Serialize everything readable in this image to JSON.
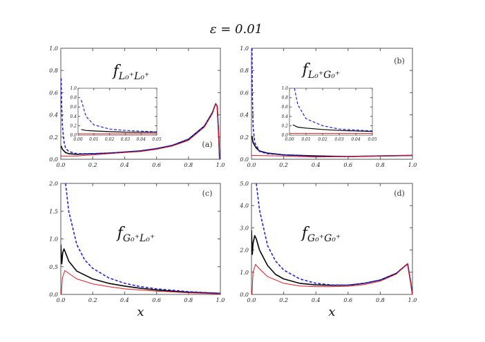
{
  "figure_title": "ε = 0.01",
  "colors": {
    "black": "#000000",
    "blue_dashed": "#1f1fe6",
    "red": "#e8141e"
  },
  "chart_data": [
    {
      "type": "line",
      "panel_label": "(a)",
      "function_label": {
        "base": "f",
        "sub": "L₀⁺L₀⁺"
      },
      "xlabel": "",
      "xlim": [
        0,
        1
      ],
      "ylim": [
        0,
        1
      ],
      "xticks": [
        "0.0",
        "0.2",
        "0.4",
        "0.6",
        "0.8",
        "1.0"
      ],
      "yticks": [
        "0.0",
        "0.2",
        "0.4",
        "0.6",
        "0.8",
        "1.0"
      ],
      "series": [
        {
          "color": "black",
          "style": "solid",
          "points": [
            [
              0.002,
              0.12
            ],
            [
              0.01,
              0.09
            ],
            [
              0.03,
              0.06
            ],
            [
              0.05,
              0.05
            ],
            [
              0.1,
              0.045
            ],
            [
              0.2,
              0.05
            ],
            [
              0.3,
              0.055
            ],
            [
              0.4,
              0.065
            ],
            [
              0.5,
              0.075
            ],
            [
              0.6,
              0.095
            ],
            [
              0.7,
              0.125
            ],
            [
              0.8,
              0.18
            ],
            [
              0.9,
              0.3
            ],
            [
              0.95,
              0.42
            ],
            [
              0.97,
              0.5
            ],
            [
              0.98,
              0.48
            ],
            [
              0.99,
              0.2
            ],
            [
              0.995,
              0
            ]
          ]
        },
        {
          "color": "blue_dashed",
          "style": "dashed",
          "points": [
            [
              0.002,
              0.73
            ],
            [
              0.005,
              0.5
            ],
            [
              0.01,
              0.3
            ],
            [
              0.02,
              0.16
            ],
            [
              0.03,
              0.1
            ],
            [
              0.05,
              0.07
            ],
            [
              0.1,
              0.05
            ],
            [
              0.2,
              0.05
            ],
            [
              0.3,
              0.056
            ],
            [
              0.4,
              0.066
            ],
            [
              0.5,
              0.077
            ],
            [
              0.6,
              0.097
            ],
            [
              0.7,
              0.127
            ],
            [
              0.8,
              0.182
            ],
            [
              0.9,
              0.3
            ],
            [
              0.95,
              0.42
            ],
            [
              0.97,
              0.5
            ],
            [
              0.98,
              0.48
            ],
            [
              0.99,
              0.2
            ],
            [
              0.995,
              0
            ]
          ]
        },
        {
          "color": "red",
          "style": "solid",
          "points": [
            [
              0.0,
              0.03
            ],
            [
              0.1,
              0.03
            ],
            [
              0.2,
              0.04
            ],
            [
              0.3,
              0.05
            ],
            [
              0.4,
              0.06
            ],
            [
              0.5,
              0.07
            ],
            [
              0.6,
              0.09
            ],
            [
              0.7,
              0.12
            ],
            [
              0.8,
              0.17
            ],
            [
              0.9,
              0.29
            ],
            [
              0.95,
              0.41
            ],
            [
              0.97,
              0.5
            ],
            [
              0.98,
              0.48
            ],
            [
              0.99,
              0.2
            ],
            [
              0.995,
              0
            ]
          ]
        }
      ],
      "inset": {
        "xlim": [
          0,
          0.05
        ],
        "ylim": [
          0,
          1
        ],
        "xticks": [
          "0.00",
          "0.01",
          "0.02",
          "0.03",
          "0.04",
          "0.05"
        ],
        "yticks": [
          "0.0",
          "0.2",
          "0.4",
          "0.6",
          "0.8",
          "1.0"
        ],
        "series": [
          {
            "color": "black",
            "style": "solid",
            "points": [
              [
                0.002,
                0.12
              ],
              [
                0.005,
                0.1
              ],
              [
                0.01,
                0.09
              ],
              [
                0.02,
                0.075
              ],
              [
                0.03,
                0.065
              ],
              [
                0.05,
                0.06
              ]
            ]
          },
          {
            "color": "blue_dashed",
            "style": "dashed",
            "points": [
              [
                0.002,
                0.75
              ],
              [
                0.005,
                0.4
              ],
              [
                0.01,
                0.22
              ],
              [
                0.02,
                0.13
              ],
              [
                0.03,
                0.1
              ],
              [
                0.05,
                0.07
              ]
            ]
          },
          {
            "color": "red",
            "style": "solid",
            "points": [
              [
                0.0,
                0.03
              ],
              [
                0.05,
                0.03
              ]
            ]
          }
        ]
      }
    },
    {
      "type": "line",
      "panel_label": "(b)",
      "function_label": {
        "base": "f",
        "sub": "L₀⁺G₀⁺"
      },
      "xlabel": "",
      "xlim": [
        0,
        1
      ],
      "ylim": [
        0,
        1
      ],
      "xticks": [
        "0.0",
        "0.2",
        "0.4",
        "0.6",
        "0.8",
        "1.0"
      ],
      "yticks": [
        "0.0",
        "0.2",
        "0.4",
        "0.6",
        "0.8",
        "1.0"
      ],
      "series": [
        {
          "color": "black",
          "style": "solid",
          "points": [
            [
              0.002,
              0.21
            ],
            [
              0.01,
              0.15
            ],
            [
              0.03,
              0.1
            ],
            [
              0.05,
              0.075
            ],
            [
              0.1,
              0.055
            ],
            [
              0.2,
              0.04
            ],
            [
              0.4,
              0.03
            ],
            [
              0.6,
              0.025
            ],
            [
              0.8,
              0.03
            ],
            [
              1.0,
              0.035
            ]
          ]
        },
        {
          "color": "blue_dashed",
          "style": "dashed",
          "points": [
            [
              0.003,
              1.0
            ],
            [
              0.005,
              0.6
            ],
            [
              0.01,
              0.3
            ],
            [
              0.02,
              0.15
            ],
            [
              0.05,
              0.07
            ],
            [
              0.1,
              0.05
            ],
            [
              0.2,
              0.04
            ],
            [
              0.4,
              0.025
            ],
            [
              0.6,
              0.025
            ],
            [
              0.8,
              0.03
            ],
            [
              1.0,
              0.035
            ]
          ]
        },
        {
          "color": "red",
          "style": "solid",
          "points": [
            [
              0.0,
              0.035
            ],
            [
              0.2,
              0.03
            ],
            [
              0.4,
              0.02
            ],
            [
              0.6,
              0.025
            ],
            [
              0.8,
              0.03
            ],
            [
              1.0,
              0.035
            ]
          ]
        }
      ],
      "inset": {
        "xlim": [
          0,
          0.05
        ],
        "ylim": [
          0,
          1
        ],
        "xticks": [
          "0.00",
          "0.01",
          "0.02",
          "0.03",
          "0.04",
          "0.05"
        ],
        "yticks": [
          "0.0",
          "0.2",
          "0.4",
          "0.6",
          "0.8",
          "1.0"
        ],
        "series": [
          {
            "color": "black",
            "style": "solid",
            "points": [
              [
                0.002,
                0.22
              ],
              [
                0.005,
                0.17
              ],
              [
                0.01,
                0.15
              ],
              [
                0.02,
                0.12
              ],
              [
                0.03,
                0.1
              ],
              [
                0.05,
                0.08
              ]
            ]
          },
          {
            "color": "blue_dashed",
            "style": "dashed",
            "points": [
              [
                0.003,
                1.0
              ],
              [
                0.005,
                0.65
              ],
              [
                0.01,
                0.35
              ],
              [
                0.02,
                0.2
              ],
              [
                0.03,
                0.13
              ],
              [
                0.05,
                0.09
              ]
            ]
          },
          {
            "color": "red",
            "style": "solid",
            "points": [
              [
                0.0,
                0.035
              ],
              [
                0.05,
                0.035
              ]
            ]
          }
        ]
      }
    },
    {
      "type": "line",
      "panel_label": "(c)",
      "function_label": {
        "base": "f",
        "sub": "G₀⁺L₀⁺"
      },
      "xlabel": "x",
      "xlim": [
        0,
        1
      ],
      "ylim": [
        0,
        2
      ],
      "xticks": [
        "0.0",
        "0.2",
        "0.4",
        "0.6",
        "0.8",
        "1.0"
      ],
      "yticks": [
        "0.0",
        "0.5",
        "1.0",
        "1.5",
        "2.0"
      ],
      "series": [
        {
          "color": "black",
          "style": "solid",
          "points": [
            [
              0.0,
              0.9
            ],
            [
              0.006,
              0.55
            ],
            [
              0.012,
              0.75
            ],
            [
              0.02,
              0.82
            ],
            [
              0.03,
              0.75
            ],
            [
              0.05,
              0.6
            ],
            [
              0.1,
              0.42
            ],
            [
              0.2,
              0.28
            ],
            [
              0.3,
              0.2
            ],
            [
              0.4,
              0.15
            ],
            [
              0.5,
              0.11
            ],
            [
              0.6,
              0.08
            ],
            [
              0.8,
              0.04
            ],
            [
              1.0,
              0.02
            ]
          ]
        },
        {
          "color": "blue_dashed",
          "style": "dashed",
          "points": [
            [
              0.03,
              2.0
            ],
            [
              0.05,
              1.5
            ],
            [
              0.1,
              0.9
            ],
            [
              0.15,
              0.62
            ],
            [
              0.2,
              0.47
            ],
            [
              0.3,
              0.3
            ],
            [
              0.4,
              0.2
            ],
            [
              0.5,
              0.14
            ],
            [
              0.6,
              0.1
            ],
            [
              0.8,
              0.05
            ],
            [
              1.0,
              0.02
            ]
          ]
        },
        {
          "color": "red",
          "style": "solid",
          "points": [
            [
              0.003,
              0
            ],
            [
              0.01,
              0.3
            ],
            [
              0.025,
              0.43
            ],
            [
              0.05,
              0.38
            ],
            [
              0.1,
              0.28
            ],
            [
              0.2,
              0.19
            ],
            [
              0.3,
              0.14
            ],
            [
              0.4,
              0.1
            ],
            [
              0.5,
              0.08
            ],
            [
              0.6,
              0.06
            ],
            [
              0.8,
              0.03
            ],
            [
              1.0,
              0.01
            ]
          ]
        }
      ]
    },
    {
      "type": "line",
      "panel_label": "(d)",
      "function_label": {
        "base": "f",
        "sub": "G₀⁺G₀⁺"
      },
      "xlabel": "x",
      "xlim": [
        0,
        1
      ],
      "ylim": [
        0,
        5
      ],
      "xticks": [
        "0.0",
        "0.2",
        "0.4",
        "0.6",
        "0.8",
        "1.0"
      ],
      "yticks": [
        "0.0",
        "1.0",
        "2.0",
        "3.0",
        "4.0",
        "5.0"
      ],
      "series": [
        {
          "color": "black",
          "style": "solid",
          "points": [
            [
              0.0,
              2.9
            ],
            [
              0.005,
              1.8
            ],
            [
              0.01,
              2.3
            ],
            [
              0.02,
              2.65
            ],
            [
              0.03,
              2.5
            ],
            [
              0.05,
              2.0
            ],
            [
              0.1,
              1.3
            ],
            [
              0.15,
              0.9
            ],
            [
              0.2,
              0.7
            ],
            [
              0.3,
              0.5
            ],
            [
              0.4,
              0.43
            ],
            [
              0.5,
              0.41
            ],
            [
              0.6,
              0.42
            ],
            [
              0.7,
              0.5
            ],
            [
              0.8,
              0.65
            ],
            [
              0.9,
              0.95
            ],
            [
              0.97,
              1.38
            ],
            [
              0.99,
              0.5
            ],
            [
              1.0,
              0
            ]
          ]
        },
        {
          "color": "blue_dashed",
          "style": "dashed",
          "points": [
            [
              0.03,
              5.0
            ],
            [
              0.05,
              3.8
            ],
            [
              0.1,
              2.2
            ],
            [
              0.15,
              1.5
            ],
            [
              0.2,
              1.1
            ],
            [
              0.3,
              0.7
            ],
            [
              0.4,
              0.5
            ],
            [
              0.5,
              0.43
            ],
            [
              0.6,
              0.42
            ],
            [
              0.7,
              0.5
            ],
            [
              0.8,
              0.65
            ],
            [
              0.9,
              0.95
            ],
            [
              0.97,
              1.38
            ],
            [
              0.99,
              0.5
            ],
            [
              1.0,
              0
            ]
          ]
        },
        {
          "color": "red",
          "style": "solid",
          "points": [
            [
              0.003,
              0
            ],
            [
              0.01,
              1.0
            ],
            [
              0.025,
              1.35
            ],
            [
              0.05,
              1.15
            ],
            [
              0.1,
              0.8
            ],
            [
              0.2,
              0.5
            ],
            [
              0.3,
              0.38
            ],
            [
              0.4,
              0.35
            ],
            [
              0.5,
              0.35
            ],
            [
              0.6,
              0.37
            ],
            [
              0.7,
              0.44
            ],
            [
              0.8,
              0.6
            ],
            [
              0.9,
              0.92
            ],
            [
              0.97,
              1.38
            ],
            [
              0.99,
              0.5
            ],
            [
              1.0,
              0
            ]
          ]
        }
      ]
    }
  ]
}
